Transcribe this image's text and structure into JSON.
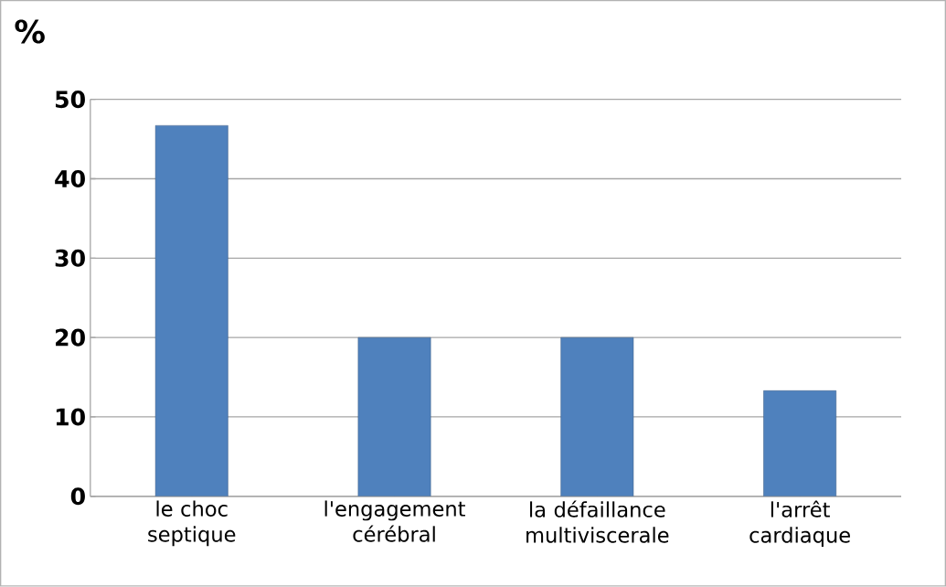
{
  "chart_data": {
    "type": "bar",
    "ylabel": "%",
    "categories": [
      "le choc septique",
      "l'engagement cérébral",
      "la défaillance multiviscerale",
      "l'arrêt cardiaque"
    ],
    "values": [
      46.7,
      20,
      20,
      13.3
    ],
    "color": "#4f81bd",
    "ylim": [
      0,
      50
    ],
    "yticks": [
      0,
      10,
      20,
      30,
      40,
      50
    ],
    "grid": "y"
  }
}
